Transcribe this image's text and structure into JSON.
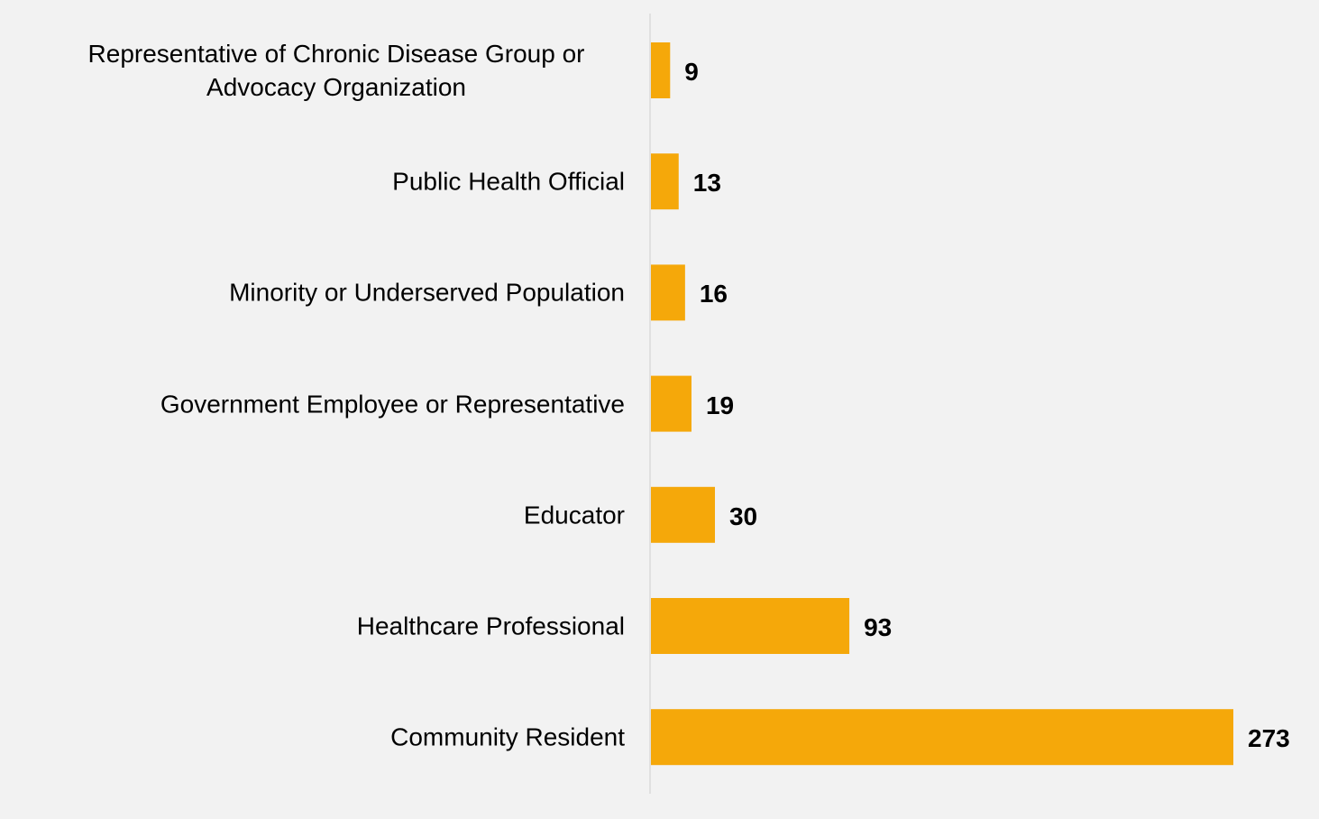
{
  "chart_data": {
    "type": "bar",
    "orientation": "horizontal",
    "categories": [
      "Representative of Chronic Disease Group or Advocacy Organization",
      "Public Health Official",
      "Minority or Underserved Population",
      "Government Employee or Representative",
      "Educator",
      "Healthcare Professional",
      "Community Resident"
    ],
    "values": [
      9,
      13,
      16,
      19,
      30,
      93,
      273
    ],
    "color": "#f5a80a"
  }
}
